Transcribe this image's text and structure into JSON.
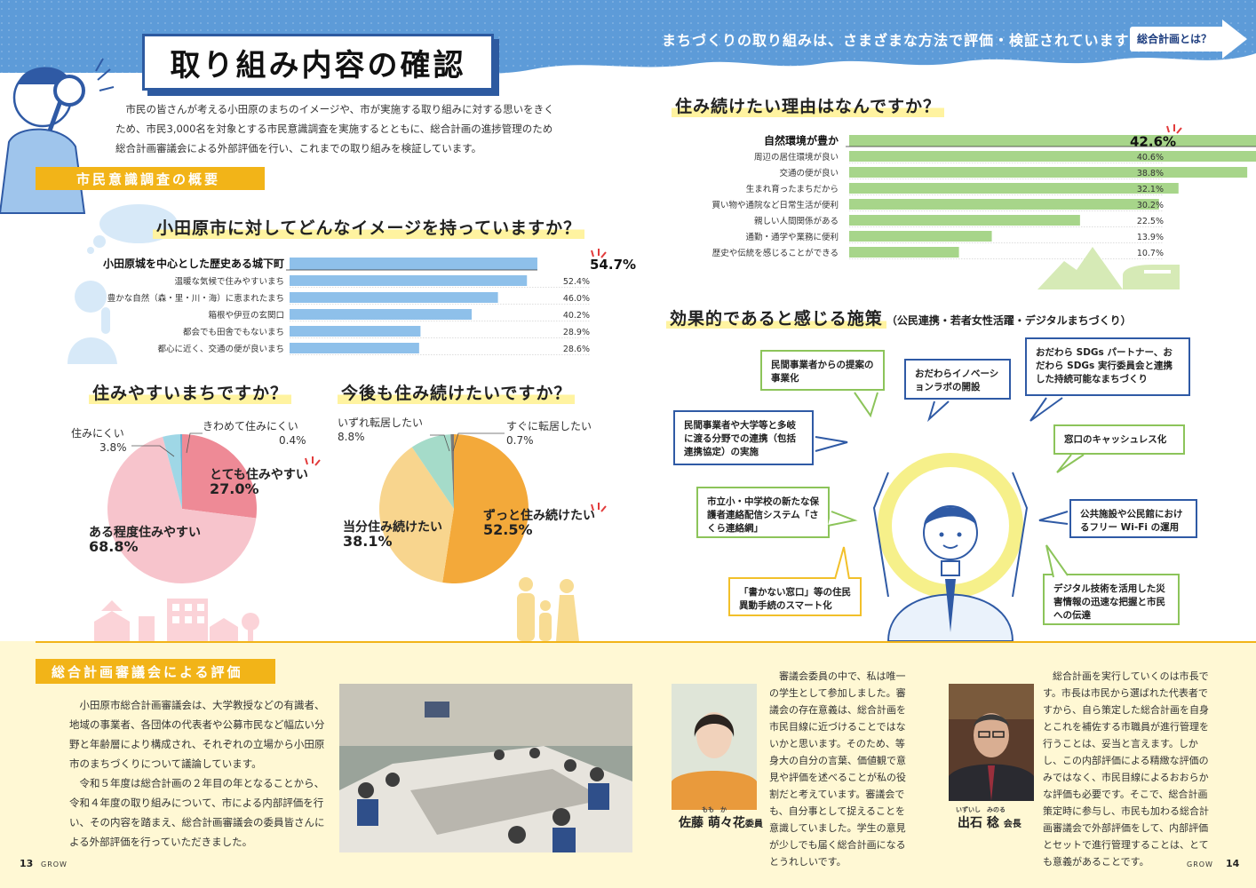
{
  "header": {
    "title": "取り組み内容の確認",
    "tagline": "まちづくりの取り組みは、さまざまな方法で評価・検証されています",
    "nav_button": "総合計画とは？"
  },
  "intro": "市民の皆さんが考える小田原のまちのイメージや、市が実施する取り組みに対する思いをきくため、市民3,000名を対象とする市民意識調査を実施するとともに、総合計画の進捗管理のため総合計画審議会による外部評価を行い、これまでの取り組みを検証しています。",
  "survey_section_label": "市民意識調査の概要",
  "image_question": {
    "title": "小田原市に対してどんなイメージを持っていますか？",
    "items": [
      {
        "label": "小田原城を中心とした歴史ある城下町",
        "value_text": "54.7%"
      },
      {
        "label": "温暖な気候で住みやすいまち",
        "value_text": "52.4%"
      },
      {
        "label": "豊かな自然（森・里・川・海）に恵まれたまち",
        "value_text": "46.0%"
      },
      {
        "label": "箱根や伊豆の玄関口",
        "value_text": "40.2%"
      },
      {
        "label": "都会でも田舎でもないまち",
        "value_text": "28.9%"
      },
      {
        "label": "都心に近く、交通の便が良いまち",
        "value_text": "28.6%"
      }
    ]
  },
  "reason_question": {
    "title": "住み続けたい理由はなんですか？",
    "items": [
      {
        "label": "自然環境が豊か",
        "value_text": "42.6%"
      },
      {
        "label": "周辺の居住環境が良い",
        "value_text": "40.6%"
      },
      {
        "label": "交通の便が良い",
        "value_text": "38.8%"
      },
      {
        "label": "生まれ育ったまちだから",
        "value_text": "32.1%"
      },
      {
        "label": "買い物や通院など日常生活が便利",
        "value_text": "30.2%"
      },
      {
        "label": "親しい人間関係がある",
        "value_text": "22.5%"
      },
      {
        "label": "通勤・通学や業務に便利",
        "value_text": "13.9%"
      },
      {
        "label": "歴史や伝統を感じることができる",
        "value_text": "10.7%"
      }
    ]
  },
  "livable_question": {
    "title": "住みやすいまちですか？",
    "slices": [
      {
        "label": "とても住みやすい",
        "value_text": "27.0%"
      },
      {
        "label": "ある程度住みやすい",
        "value_text": "68.8%"
      },
      {
        "label": "住みにくい",
        "value_text": "3.8%"
      },
      {
        "label": "きわめて住みにくい",
        "value_text": "0.4%"
      }
    ]
  },
  "continue_question": {
    "title": "今後も住み続けたいですか？",
    "slices": [
      {
        "label": "ずっと住み続けたい",
        "value_text": "52.5%"
      },
      {
        "label": "当分住み続けたい",
        "value_text": "38.1%"
      },
      {
        "label": "いずれ転居したい",
        "value_text": "8.8%"
      },
      {
        "label": "すぐに転居したい",
        "value_text": "0.7%"
      }
    ]
  },
  "measures": {
    "title": "効果的であると感じる施策",
    "subtitle": "（公民連携・若者女性活躍・デジタルまちづくり）",
    "bubbles": [
      "民間事業者からの提案の事業化",
      "おだわらイノベーションラボの開設",
      "おだわら SDGs パートナー、おだわら SDGs 実行委員会と連携した持続可能なまちづくり",
      "民間事業者や大学等と多岐に渡る分野での連携（包括連携協定）の実施",
      "窓口のキャッシュレス化",
      "市立小・中学校の新たな保護者連絡配信システム「さくら連絡網」",
      "公共施設や公民館におけるフリー Wi-Fi の運用",
      "「書かない窓口」等の住民異動手続のスマート化",
      "デジタル技術を活用した災害情報の迅速な把握と市民への伝達"
    ]
  },
  "evaluation": {
    "label": "総合計画審議会による評価",
    "paragraphs": [
      "小田原市総合計画審議会は、大学教授などの有識者、地域の事業者、各団体の代表者や公募市民など幅広い分野と年齢層により構成され、それぞれの立場から小田原市のまちづくりについて議論しています。",
      "令和５年度は総合計画の２年目の年となることから、令和４年度の取り組みについて、市による内部評価を行い、その内容を踏まえ、総合計画審議会の委員皆さんによる外部評価を行っていただきました。"
    ]
  },
  "comments": [
    {
      "name": "佐藤 萌々花",
      "name_ruby": "もも　か",
      "role": "委員",
      "text": "審議会委員の中で、私は唯一の学生として参加しました。審議会の存在意義は、総合計画を市民目線に近づけることではないかと思います。そのため、等身大の自分の言葉、価値観で意見や評価を述べることが私の役割だと考えています。審議会でも、自分事として捉えることを意識していました。学生の意見が少しでも届く総合計画になるとうれしいです。"
    },
    {
      "name": "出石 稔",
      "name_ruby": "いずいし　みのる",
      "role": "会長",
      "text": "総合計画を実行していくのは市長です。市長は市民から選ばれた代表者ですから、自ら策定した総合計画を自身とこれを補佐する市職員が進行管理を行うことは、妥当と言えます。しかし、この内部評価による精緻な評価のみではなく、市民目線によるおおらかな評価も必要です。そこで、総合計画策定時に参与し、市民も加わる総合計画審議会で外部評価をして、内部評価とセットで進行管理することは、とても意義があることです。"
    }
  ],
  "footer": {
    "left_page": "13",
    "right_page": "14",
    "magazine": "GROW"
  },
  "colors": {
    "header_blue": "#5d9bd8",
    "accent_yellow": "#f2b418",
    "bar_blue": "#8ec0ea",
    "bar_green": "#a7d58a",
    "pie_pink_dark": "#ee8a96",
    "pie_pink_light": "#f7c4cc",
    "pie_orange": "#f3a93a",
    "pie_orange_light": "#f8d58e",
    "pie_mint": "#a5dbc9",
    "pie_cyan": "#9fd7e6",
    "navy": "#2f5aa5"
  },
  "chart_data": [
    {
      "type": "bar",
      "title": "小田原市に対してどんなイメージを持っていますか？",
      "categories": [
        "小田原城を中心とした歴史ある城下町",
        "温暖な気候で住みやすいまち",
        "豊かな自然（森・里・川・海）に恵まれたまち",
        "箱根や伊豆の玄関口",
        "都会でも田舎でもないまち",
        "都心に近く、交通の便が良いまち"
      ],
      "values": [
        54.7,
        52.4,
        46.0,
        40.2,
        28.9,
        28.6
      ]
    },
    {
      "type": "bar",
      "title": "住み続けたい理由はなんですか？",
      "categories": [
        "自然環境が豊か",
        "周辺の居住環境が良い",
        "交通の便が良い",
        "生まれ育ったまちだから",
        "買い物や通院など日常生活が便利",
        "親しい人間関係がある",
        "通勤・通学や業務に便利",
        "歴史や伝統を感じることができる"
      ],
      "values": [
        42.6,
        40.6,
        38.8,
        32.1,
        30.2,
        22.5,
        13.9,
        10.7
      ]
    },
    {
      "type": "pie",
      "title": "住みやすいまちですか？",
      "categories": [
        "とても住みやすい",
        "ある程度住みやすい",
        "住みにくい",
        "きわめて住みにくい"
      ],
      "values": [
        27.0,
        68.8,
        3.8,
        0.4
      ]
    },
    {
      "type": "pie",
      "title": "今後も住み続けたいですか？",
      "categories": [
        "ずっと住み続けたい",
        "当分住み続けたい",
        "いずれ転居したい",
        "すぐに転居したい"
      ],
      "values": [
        52.5,
        38.1,
        8.8,
        0.7
      ]
    }
  ]
}
